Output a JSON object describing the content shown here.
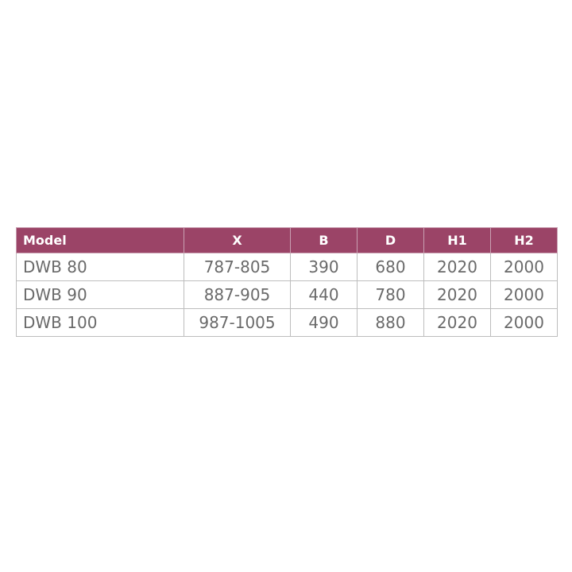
{
  "colors": {
    "accent": "#9b4467"
  },
  "table": {
    "columns": [
      "Model",
      "X",
      "B",
      "D",
      "H1",
      "H2"
    ],
    "rows": [
      [
        "DWB 80",
        "787-805",
        "390",
        "680",
        "2020",
        "2000"
      ],
      [
        "DWB 90",
        "887-905",
        "440",
        "780",
        "2020",
        "2000"
      ],
      [
        "DWB 100",
        "987-1005",
        "490",
        "880",
        "2020",
        "2000"
      ]
    ]
  }
}
